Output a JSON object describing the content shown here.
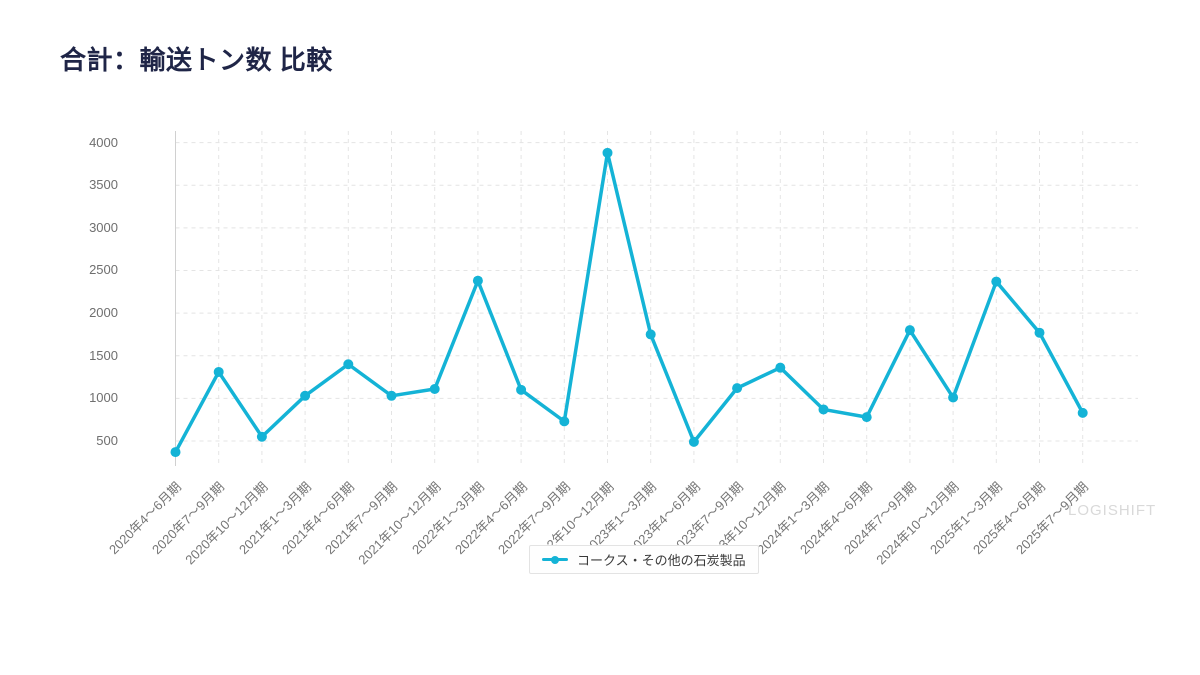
{
  "page": {
    "title": "合計：輸送トン数 比較",
    "watermark": "LOGISHIFT"
  },
  "legend": {
    "label": "コークス・その他の石炭製品"
  },
  "colors": {
    "series": "#14b3d6",
    "title": "#1f2547",
    "axis_line": "#d0d0d0",
    "gridline": "#e4e4e4",
    "axis_text": "#6f6f6f",
    "legend_border": "#e3e3e3",
    "legend_text": "#3a3a3a",
    "watermark": "#d9d9d9",
    "background": "#ffffff"
  },
  "chart_data": {
    "type": "line",
    "title": "合計：輸送トン数 比較",
    "categories": [
      "2020年4～6月期",
      "2020年7～9月期",
      "2020年10～12月期",
      "2021年1～3月期",
      "2021年4～6月期",
      "2021年7～9月期",
      "2021年10～12月期",
      "2022年1～3月期",
      "2022年4～6月期",
      "2022年7～9月期",
      "2022年10～12月期",
      "2023年1～3月期",
      "2023年4～6月期",
      "2023年7～9月期",
      "2023年10～12月期",
      "2024年1～3月期",
      "2024年4～6月期",
      "2024年7～9月期",
      "2024年10～12月期",
      "2025年1～3月期",
      "2025年4～6月期",
      "2025年7～9月期"
    ],
    "series": [
      {
        "name": "コークス・その他の石炭製品",
        "color": "#14b3d6",
        "values": [
          370,
          1310,
          550,
          1030,
          1400,
          1030,
          1110,
          2380,
          1100,
          730,
          3880,
          1750,
          490,
          1120,
          1360,
          870,
          780,
          1800,
          1010,
          2370,
          1770,
          830
        ]
      }
    ],
    "xlabel": "",
    "ylabel": "",
    "y_ticks": [
      500,
      1000,
      1500,
      2000,
      2500,
      3000,
      3500,
      4000
    ],
    "ylim": [
      200,
      4140
    ],
    "grid": "dashed",
    "legend_position": "bottom-center"
  }
}
